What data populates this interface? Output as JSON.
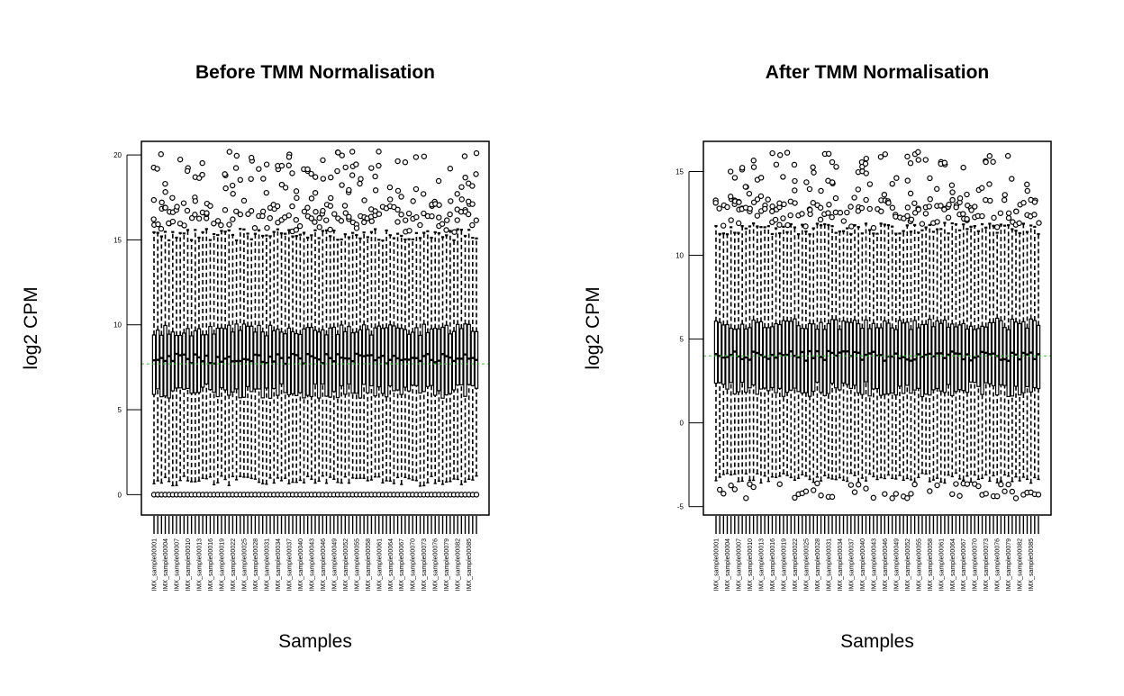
{
  "chart_data": [
    {
      "type": "boxplot",
      "title": "Before TMM Normalisation",
      "xlabel": "Samples",
      "ylabel": "log2 CPM",
      "ylim": [
        -1.2,
        20.8
      ],
      "yticks": [
        "0",
        "5",
        "10",
        "15",
        "20"
      ],
      "reference_line": 7.7,
      "reference_line_color": "#33cc33",
      "sample_labels": [
        "IMX_sample00001",
        "IMX_sample00004",
        "IMX_sample00007",
        "IMX_sample00010",
        "IMX_sample00013",
        "IMX_sample00016",
        "IMX_sample00019",
        "IMX_sample00022",
        "IMX_sample00025",
        "IMX_sample00028",
        "IMX_sample00031",
        "IMX_sample00034",
        "IMX_sample00037",
        "IMX_sample00040",
        "IMX_sample00043",
        "IMX_sample00046",
        "IMX_sample00049",
        "IMX_sample00052",
        "IMX_sample00055",
        "IMX_sample00058",
        "IMX_sample00061",
        "IMX_sample00064",
        "IMX_sample00067",
        "IMX_sample00070",
        "IMX_sample00073",
        "IMX_sample00076",
        "IMX_sample00079",
        "IMX_sample00082",
        "IMX_sample00085"
      ],
      "n_samples": 87,
      "typical_box": {
        "whisker_low": 0.8,
        "q1": 6.1,
        "median": 8.0,
        "q3": 9.7,
        "whisker_high": 15.3
      },
      "outliers_low": 0,
      "outliers_high_range": [
        15.6,
        20.2
      ]
    },
    {
      "type": "boxplot",
      "title": "After TMM Normalisation",
      "xlabel": "Samples",
      "ylabel": "log2 CPM",
      "ylim": [
        -5.5,
        16.8
      ],
      "yticks": [
        "-5",
        "0",
        "5",
        "10",
        "15"
      ],
      "reference_line": 4.0,
      "reference_line_color": "#33cc33",
      "sample_labels": [
        "IMX_sample00001",
        "IMX_sample00004",
        "IMX_sample00007",
        "IMX_sample00010",
        "IMX_sample00013",
        "IMX_sample00016",
        "IMX_sample00019",
        "IMX_sample00022",
        "IMX_sample00025",
        "IMX_sample00028",
        "IMX_sample00031",
        "IMX_sample00034",
        "IMX_sample00037",
        "IMX_sample00040",
        "IMX_sample00043",
        "IMX_sample00046",
        "IMX_sample00049",
        "IMX_sample00052",
        "IMX_sample00055",
        "IMX_sample00058",
        "IMX_sample00061",
        "IMX_sample00064",
        "IMX_sample00067",
        "IMX_sample00070",
        "IMX_sample00073",
        "IMX_sample00076",
        "IMX_sample00079",
        "IMX_sample00082",
        "IMX_sample00085"
      ],
      "n_samples": 87,
      "typical_box": {
        "whisker_low": -3.3,
        "q1": 2.0,
        "median": 4.0,
        "q3": 5.9,
        "whisker_high": 11.6
      },
      "outliers_low_range": [
        -4.5,
        -3.6
      ],
      "outliers_high_range": [
        11.8,
        16.2
      ]
    }
  ]
}
